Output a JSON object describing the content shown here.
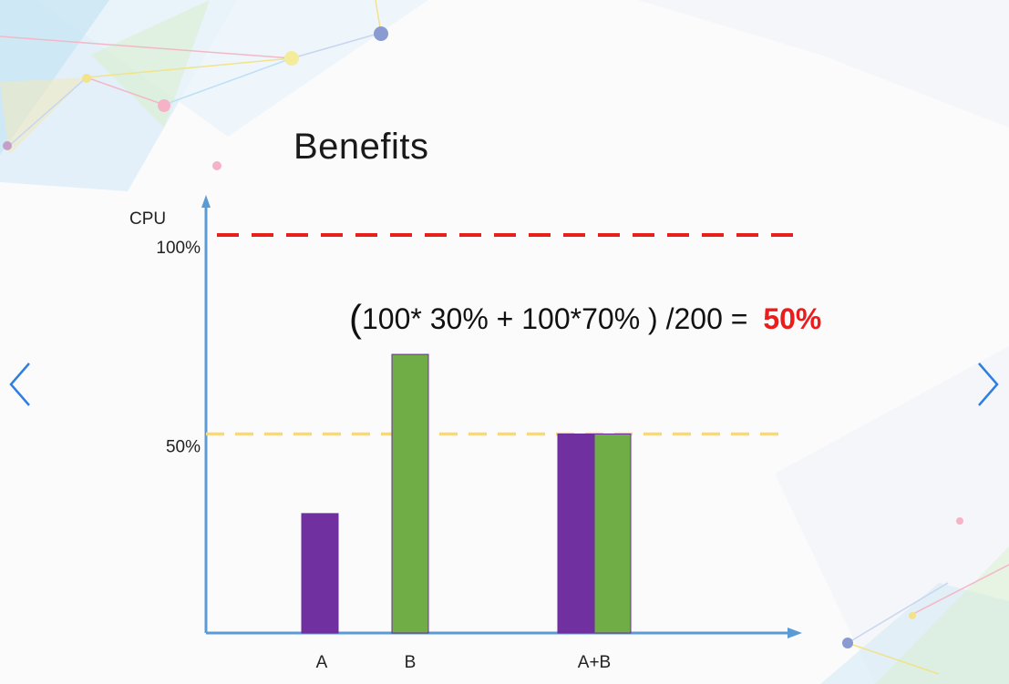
{
  "slide": {
    "title": "Benefits",
    "formula": {
      "open_paren": "(",
      "expression": "100* 30%  + 100*70%  ) /200 = ",
      "result": "50%"
    }
  },
  "navigation": {
    "prev_icon": "chevron-left-icon",
    "next_icon": "chevron-right-icon"
  },
  "colors": {
    "purple": "#7030a0",
    "green": "#70ad47",
    "axis": "#5b9bd5",
    "red_dash": "#e8201c",
    "yellow_dash": "#ffd966",
    "result": "#ea1c1c"
  },
  "chart_data": {
    "type": "bar",
    "ylabel": "CPU",
    "categories": [
      "A",
      "B",
      "A+B"
    ],
    "series": [
      {
        "values": [
          30,
          70,
          50
        ]
      },
      {
        "values": [
          0,
          0,
          50
        ]
      }
    ],
    "bar_colors": [
      [
        "#7030a0",
        "#70ad47",
        "#7030a0"
      ],
      [
        null,
        null,
        "#70ad47"
      ]
    ],
    "yticks": [
      {
        "value": 50,
        "label": "50%"
      },
      {
        "value": 100,
        "label": "100%"
      }
    ],
    "reference_lines": [
      {
        "value": 100,
        "color": "#e8201c",
        "style": "dashed"
      },
      {
        "value": 50,
        "color": "#ffd966",
        "style": "dashed"
      }
    ],
    "ylim": [
      0,
      100
    ],
    "grid": false
  }
}
